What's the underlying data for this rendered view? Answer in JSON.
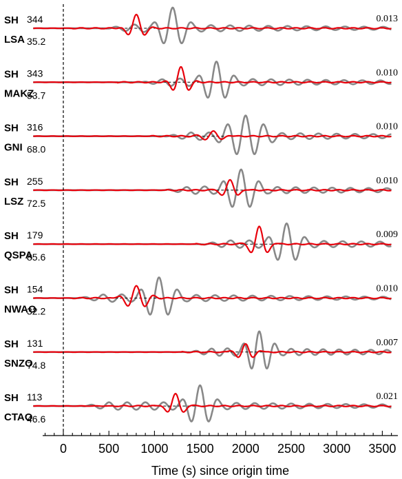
{
  "chart_data": {
    "type": "line",
    "title": "",
    "xlabel": "Time (s) since origin time",
    "ylabel": "",
    "xlim": [
      -330,
      3600
    ],
    "xticks": [
      0,
      500,
      1000,
      1500,
      2000,
      2500,
      3000,
      3500
    ],
    "xtick_labels": [
      "0",
      "500",
      "1000",
      "1500",
      "2000",
      "2500",
      "3000",
      "3500"
    ],
    "origin_line_x": 0,
    "colors": {
      "observed": "#888888",
      "synthetic": "#e8000b",
      "baseline": "#000000"
    },
    "traces": [
      {
        "component": "SH",
        "station": "LSA",
        "azimuth": "344",
        "distance": "35.2",
        "amplitude": "0.013",
        "observed": {
          "onset": 450,
          "center": 1200,
          "period": 210,
          "amp": 1.0,
          "width": 170
        },
        "synthetic": {
          "center": 800,
          "period": 210,
          "amp": 0.65,
          "width": 110
        }
      },
      {
        "component": "SH",
        "station": "MAKZ",
        "azimuth": "343",
        "distance": "53.7",
        "amplitude": "0.010",
        "observed": {
          "onset": 850,
          "center": 1680,
          "period": 200,
          "amp": 1.0,
          "width": 170
        },
        "synthetic": {
          "center": 1290,
          "period": 200,
          "amp": 0.72,
          "width": 110
        }
      },
      {
        "component": "SH",
        "station": "GNI",
        "azimuth": "316",
        "distance": "68.0",
        "amplitude": "0.010",
        "observed": {
          "onset": 1100,
          "center": 2000,
          "period": 200,
          "amp": 1.0,
          "width": 250
        },
        "synthetic": {
          "center": 1650,
          "period": 200,
          "amp": 0.25,
          "width": 140
        }
      },
      {
        "component": "SH",
        "station": "LSZ",
        "azimuth": "255",
        "distance": "72.5",
        "amplitude": "0.010",
        "observed": {
          "onset": 1100,
          "center": 1950,
          "period": 200,
          "amp": 1.0,
          "width": 200
        },
        "synthetic": {
          "center": 1830,
          "period": 200,
          "amp": 0.52,
          "width": 110
        }
      },
      {
        "component": "SH",
        "station": "QSPA",
        "azimuth": "179",
        "distance": "85.6",
        "amplitude": "0.009",
        "observed": {
          "onset": 1500,
          "center": 2450,
          "period": 205,
          "amp": 1.0,
          "width": 180
        },
        "synthetic": {
          "center": 2150,
          "period": 205,
          "amp": 0.88,
          "width": 110
        }
      },
      {
        "component": "SH",
        "station": "NWAO",
        "azimuth": "154",
        "distance": "32.2",
        "amplitude": "0.010",
        "observed": {
          "onset": 150,
          "center": 1050,
          "period": 205,
          "amp": 1.0,
          "width": 200
        },
        "synthetic": {
          "center": 800,
          "period": 205,
          "amp": 0.58,
          "width": 150
        }
      },
      {
        "component": "SH",
        "station": "SNZO",
        "azimuth": "131",
        "distance": "74.8",
        "amplitude": "0.007",
        "observed": {
          "onset": 1350,
          "center": 2150,
          "period": 175,
          "amp": 1.0,
          "width": 170
        },
        "synthetic": {
          "center": 2000,
          "period": 175,
          "amp": 0.42,
          "width": 130
        }
      },
      {
        "component": "SH",
        "station": "CTAO",
        "azimuth": "113",
        "distance": "46.6",
        "amplitude": "0.021",
        "observed": {
          "onset": 200,
          "center": 1500,
          "period": 200,
          "amp": 1.0,
          "width": 170
        },
        "synthetic": {
          "center": 1230,
          "period": 200,
          "amp": 0.62,
          "width": 110
        }
      }
    ]
  }
}
